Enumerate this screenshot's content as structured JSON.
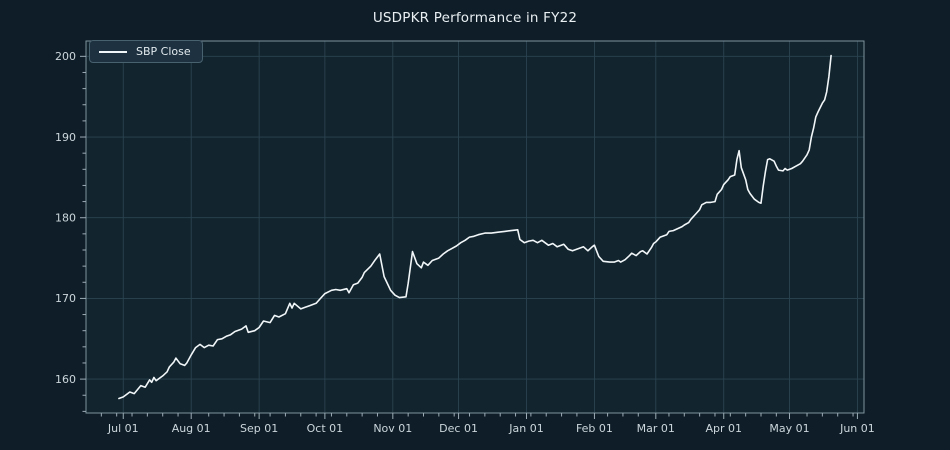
{
  "title": "USDPKR Performance in FY22",
  "legend": {
    "label": "SBP Close"
  },
  "colors": {
    "figure_bg": "#0e1d27",
    "axes_bg": "#12242e",
    "grid": "#2b4350",
    "spine": "#7f939e",
    "tick": "#9dadb6",
    "tick_label": "#ccd6dc",
    "title": "#e9eff3",
    "line": "#f1f6f8",
    "legend_bg": "#1d3140",
    "legend_border": "#49626f",
    "legend_text": "#e2eaee"
  },
  "chart_data": {
    "type": "line",
    "title": "USDPKR Performance in FY22",
    "xlabel": "",
    "ylabel": "",
    "grid": true,
    "legend_position": "upper left",
    "ylim": [
      155.8,
      201.9
    ],
    "xlim": [
      "2021-06-14",
      "2022-06-04"
    ],
    "y_ticks": [
      160,
      170,
      180,
      190,
      200
    ],
    "y_tick_labels": [
      "160",
      "170",
      "180",
      "190",
      "200"
    ],
    "y_minor_tick_step": 2,
    "x_minor_tick_interval_days": 7,
    "x_ticks": [
      "2021-07-01",
      "2021-08-01",
      "2021-09-01",
      "2021-10-01",
      "2021-11-01",
      "2021-12-01",
      "2022-01-01",
      "2022-02-01",
      "2022-03-01",
      "2022-04-01",
      "2022-05-01",
      "2022-06-01"
    ],
    "x_tick_labels": [
      "Jul 01",
      "Aug 01",
      "Sep 01",
      "Oct 01",
      "Nov 01",
      "Dec 01",
      "Jan 01",
      "Feb 01",
      "Mar 01",
      "Apr 01",
      "May 01",
      "Jun 01"
    ],
    "series": [
      {
        "name": "SBP Close",
        "points": [
          [
            "2021-06-29",
            157.6
          ],
          [
            "2021-07-01",
            157.8
          ],
          [
            "2021-07-04",
            158.4
          ],
          [
            "2021-07-06",
            158.2
          ],
          [
            "2021-07-09",
            159.2
          ],
          [
            "2021-07-11",
            159.0
          ],
          [
            "2021-07-13",
            159.9
          ],
          [
            "2021-07-14",
            159.6
          ],
          [
            "2021-07-15",
            160.2
          ],
          [
            "2021-07-16",
            159.8
          ],
          [
            "2021-07-19",
            160.4
          ],
          [
            "2021-07-21",
            160.9
          ],
          [
            "2021-07-22",
            161.5
          ],
          [
            "2021-07-24",
            162.1
          ],
          [
            "2021-07-25",
            162.6
          ],
          [
            "2021-07-27",
            161.9
          ],
          [
            "2021-07-29",
            161.7
          ],
          [
            "2021-07-30",
            162.0
          ],
          [
            "2021-08-01",
            163.0
          ],
          [
            "2021-08-03",
            163.9
          ],
          [
            "2021-08-05",
            164.3
          ],
          [
            "2021-08-07",
            163.9
          ],
          [
            "2021-08-09",
            164.2
          ],
          [
            "2021-08-11",
            164.1
          ],
          [
            "2021-08-13",
            164.9
          ],
          [
            "2021-08-15",
            165.0
          ],
          [
            "2021-08-17",
            165.3
          ],
          [
            "2021-08-19",
            165.5
          ],
          [
            "2021-08-21",
            165.9
          ],
          [
            "2021-08-24",
            166.2
          ],
          [
            "2021-08-26",
            166.6
          ],
          [
            "2021-08-27",
            165.8
          ],
          [
            "2021-08-30",
            166.0
          ],
          [
            "2021-09-01",
            166.4
          ],
          [
            "2021-09-03",
            167.2
          ],
          [
            "2021-09-06",
            167.0
          ],
          [
            "2021-09-08",
            167.9
          ],
          [
            "2021-09-10",
            167.7
          ],
          [
            "2021-09-13",
            168.1
          ],
          [
            "2021-09-15",
            169.4
          ],
          [
            "2021-09-16",
            168.8
          ],
          [
            "2021-09-17",
            169.4
          ],
          [
            "2021-09-20",
            168.7
          ],
          [
            "2021-09-22",
            168.9
          ],
          [
            "2021-09-24",
            169.1
          ],
          [
            "2021-09-27",
            169.4
          ],
          [
            "2021-09-29",
            170.0
          ],
          [
            "2021-10-01",
            170.6
          ],
          [
            "2021-10-04",
            171.0
          ],
          [
            "2021-10-06",
            171.1
          ],
          [
            "2021-10-08",
            171.0
          ],
          [
            "2021-10-11",
            171.2
          ],
          [
            "2021-10-12",
            170.7
          ],
          [
            "2021-10-14",
            171.7
          ],
          [
            "2021-10-16",
            171.9
          ],
          [
            "2021-10-18",
            172.6
          ],
          [
            "2021-10-19",
            173.2
          ],
          [
            "2021-10-22",
            174.0
          ],
          [
            "2021-10-24",
            174.8
          ],
          [
            "2021-10-26",
            175.5
          ],
          [
            "2021-10-28",
            172.7
          ],
          [
            "2021-10-31",
            171.0
          ],
          [
            "2021-11-02",
            170.4
          ],
          [
            "2021-11-04",
            170.1
          ],
          [
            "2021-11-07",
            170.2
          ],
          [
            "2021-11-08",
            171.9
          ],
          [
            "2021-11-10",
            175.8
          ],
          [
            "2021-11-12",
            174.3
          ],
          [
            "2021-11-14",
            173.8
          ],
          [
            "2021-11-15",
            174.5
          ],
          [
            "2021-11-17",
            174.1
          ],
          [
            "2021-11-19",
            174.7
          ],
          [
            "2021-11-22",
            175.0
          ],
          [
            "2021-11-24",
            175.5
          ],
          [
            "2021-11-26",
            175.9
          ],
          [
            "2021-11-28",
            176.2
          ],
          [
            "2021-11-30",
            176.5
          ],
          [
            "2021-12-02",
            176.9
          ],
          [
            "2021-12-04",
            177.2
          ],
          [
            "2021-12-06",
            177.6
          ],
          [
            "2021-12-08",
            177.7
          ],
          [
            "2021-12-10",
            177.9
          ],
          [
            "2021-12-13",
            178.1
          ],
          [
            "2021-12-16",
            178.1
          ],
          [
            "2021-12-19",
            178.2
          ],
          [
            "2021-12-22",
            178.3
          ],
          [
            "2021-12-25",
            178.4
          ],
          [
            "2021-12-28",
            178.5
          ],
          [
            "2021-12-29",
            177.3
          ],
          [
            "2021-12-31",
            176.9
          ],
          [
            "2022-01-02",
            177.1
          ],
          [
            "2022-01-04",
            177.2
          ],
          [
            "2022-01-06",
            176.9
          ],
          [
            "2022-01-08",
            177.2
          ],
          [
            "2022-01-11",
            176.6
          ],
          [
            "2022-01-13",
            176.8
          ],
          [
            "2022-01-15",
            176.4
          ],
          [
            "2022-01-18",
            176.7
          ],
          [
            "2022-01-20",
            176.1
          ],
          [
            "2022-01-22",
            175.9
          ],
          [
            "2022-01-25",
            176.2
          ],
          [
            "2022-01-27",
            176.4
          ],
          [
            "2022-01-29",
            175.9
          ],
          [
            "2022-01-31",
            176.4
          ],
          [
            "2022-02-01",
            176.6
          ],
          [
            "2022-02-03",
            175.2
          ],
          [
            "2022-02-05",
            174.6
          ],
          [
            "2022-02-08",
            174.5
          ],
          [
            "2022-02-10",
            174.5
          ],
          [
            "2022-02-12",
            174.7
          ],
          [
            "2022-02-13",
            174.5
          ],
          [
            "2022-02-15",
            174.8
          ],
          [
            "2022-02-17",
            175.3
          ],
          [
            "2022-02-18",
            175.6
          ],
          [
            "2022-02-20",
            175.3
          ],
          [
            "2022-02-22",
            175.8
          ],
          [
            "2022-02-23",
            175.9
          ],
          [
            "2022-02-25",
            175.5
          ],
          [
            "2022-02-27",
            176.3
          ],
          [
            "2022-02-28",
            176.8
          ],
          [
            "2022-03-01",
            177.0
          ],
          [
            "2022-03-03",
            177.6
          ],
          [
            "2022-03-06",
            177.9
          ],
          [
            "2022-03-07",
            178.3
          ],
          [
            "2022-03-09",
            178.4
          ],
          [
            "2022-03-13",
            178.9
          ],
          [
            "2022-03-14",
            179.1
          ],
          [
            "2022-03-16",
            179.4
          ],
          [
            "2022-03-17",
            179.8
          ],
          [
            "2022-03-19",
            180.4
          ],
          [
            "2022-03-21",
            181.0
          ],
          [
            "2022-03-22",
            181.6
          ],
          [
            "2022-03-24",
            181.9
          ],
          [
            "2022-03-26",
            181.9
          ],
          [
            "2022-03-28",
            182.0
          ],
          [
            "2022-03-29",
            182.9
          ],
          [
            "2022-03-31",
            183.5
          ],
          [
            "2022-04-01",
            184.1
          ],
          [
            "2022-04-03",
            184.7
          ],
          [
            "2022-04-04",
            185.1
          ],
          [
            "2022-04-06",
            185.3
          ],
          [
            "2022-04-07",
            187.2
          ],
          [
            "2022-04-08",
            188.3
          ],
          [
            "2022-04-09",
            186.2
          ],
          [
            "2022-04-11",
            184.7
          ],
          [
            "2022-04-12",
            183.5
          ],
          [
            "2022-04-13",
            183.0
          ],
          [
            "2022-04-15",
            182.3
          ],
          [
            "2022-04-17",
            181.9
          ],
          [
            "2022-04-18",
            181.8
          ],
          [
            "2022-04-19",
            183.9
          ],
          [
            "2022-04-20",
            185.7
          ],
          [
            "2022-04-21",
            187.2
          ],
          [
            "2022-04-22",
            187.3
          ],
          [
            "2022-04-24",
            187.0
          ],
          [
            "2022-04-25",
            186.4
          ],
          [
            "2022-04-26",
            185.9
          ],
          [
            "2022-04-28",
            185.8
          ],
          [
            "2022-04-29",
            186.1
          ],
          [
            "2022-04-30",
            185.9
          ],
          [
            "2022-05-02",
            186.1
          ],
          [
            "2022-05-04",
            186.4
          ],
          [
            "2022-05-06",
            186.7
          ],
          [
            "2022-05-07",
            187.0
          ],
          [
            "2022-05-09",
            187.8
          ],
          [
            "2022-05-10",
            188.4
          ],
          [
            "2022-05-11",
            190.0
          ],
          [
            "2022-05-12",
            191.1
          ],
          [
            "2022-05-13",
            192.5
          ],
          [
            "2022-05-14",
            193.1
          ],
          [
            "2022-05-16",
            194.2
          ],
          [
            "2022-05-17",
            194.6
          ],
          [
            "2022-05-18",
            195.6
          ],
          [
            "2022-05-19",
            197.5
          ],
          [
            "2022-05-20",
            200.1
          ]
        ]
      }
    ]
  }
}
